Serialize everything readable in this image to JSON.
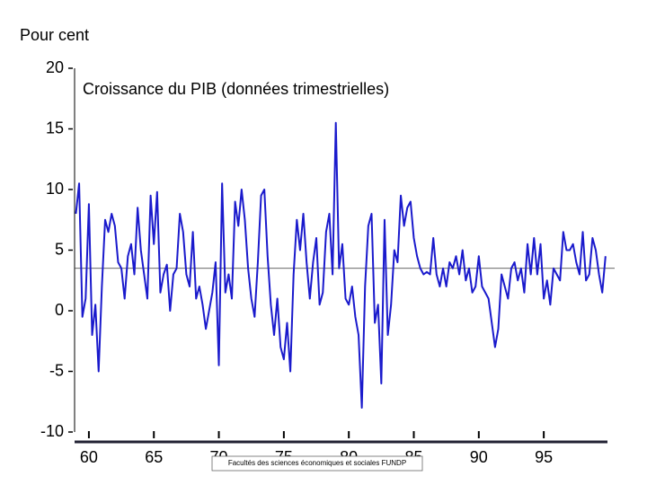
{
  "chart_data": {
    "type": "line",
    "title": "Croissance du PIB (données trimestrielles)",
    "y_label": "Pour cent",
    "footer": "Facultés des sciences économiques et sociales FUNDP",
    "x": [
      59,
      59.25,
      59.5,
      59.75,
      60,
      60.25,
      60.5,
      60.75,
      61,
      61.25,
      61.5,
      61.75,
      62,
      62.25,
      62.5,
      62.75,
      63,
      63.25,
      63.5,
      63.75,
      64,
      64.25,
      64.5,
      64.75,
      65,
      65.25,
      65.5,
      65.75,
      66,
      66.25,
      66.5,
      66.75,
      67,
      67.25,
      67.5,
      67.75,
      68,
      68.25,
      68.5,
      68.75,
      69,
      69.25,
      69.5,
      69.75,
      70,
      70.25,
      70.5,
      70.75,
      71,
      71.25,
      71.5,
      71.75,
      72,
      72.25,
      72.5,
      72.75,
      73,
      73.25,
      73.5,
      73.75,
      74,
      74.25,
      74.5,
      74.75,
      75,
      75.25,
      75.5,
      75.75,
      76,
      76.25,
      76.5,
      76.75,
      77,
      77.25,
      77.5,
      77.75,
      78,
      78.25,
      78.5,
      78.75,
      79,
      79.25,
      79.5,
      79.75,
      80,
      80.25,
      80.5,
      80.75,
      81,
      81.25,
      81.5,
      81.75,
      82,
      82.25,
      82.5,
      82.75,
      83,
      83.25,
      83.5,
      83.75,
      84,
      84.25,
      84.5,
      84.75,
      85,
      85.25,
      85.5,
      85.75,
      86,
      86.25,
      86.5,
      86.75,
      87,
      87.25,
      87.5,
      87.75,
      88,
      88.25,
      88.5,
      88.75,
      89,
      89.25,
      89.5,
      89.75,
      90,
      90.25,
      90.5,
      90.75,
      91,
      91.25,
      91.5,
      91.75,
      92,
      92.25,
      92.5,
      92.75,
      93,
      93.25,
      93.5,
      93.75,
      94,
      94.25,
      94.5,
      94.75,
      95,
      95.25,
      95.5,
      95.75,
      96,
      96.25,
      96.5,
      96.75,
      97,
      97.25,
      97.5,
      97.75,
      98,
      98.25,
      98.5,
      98.75,
      99,
      99.25,
      99.5,
      99.75
    ],
    "series": [
      {
        "name": "PIB",
        "color": "#1a1acc",
        "values": [
          8,
          10.5,
          -0.5,
          1,
          8.8,
          -2,
          0.5,
          -5,
          2,
          7.5,
          6.5,
          8,
          7,
          4,
          3.5,
          1,
          4.5,
          5.5,
          3,
          8.5,
          5,
          3,
          1,
          9.5,
          5.5,
          9.8,
          1.5,
          3,
          3.8,
          0,
          3,
          3.5,
          8,
          6.5,
          3,
          2,
          6.5,
          1,
          2,
          0.5,
          -1.5,
          0,
          1.5,
          4,
          -4.5,
          10.5,
          1.5,
          3,
          1,
          9,
          7,
          10,
          7.5,
          3.5,
          1,
          -0.5,
          4,
          9.5,
          10,
          4.5,
          0.5,
          -2,
          1,
          -3,
          -4,
          -1,
          -5,
          3,
          7.5,
          5,
          8,
          4,
          1,
          4,
          6,
          0.5,
          1.5,
          6.5,
          8,
          3,
          15.5,
          3.5,
          5.5,
          1,
          0.5,
          2,
          -0.5,
          -2,
          -8,
          2,
          7,
          8,
          -1,
          0.5,
          -6,
          7.5,
          -2,
          0.5,
          5,
          4,
          9.5,
          7,
          8.5,
          9,
          6,
          4.5,
          3.5,
          3,
          3.2,
          3,
          6,
          3,
          2,
          3.5,
          2,
          4,
          3.5,
          4.5,
          3,
          5,
          2.5,
          3.5,
          1.5,
          2,
          4.5,
          2,
          1.5,
          1,
          -1,
          -3,
          -1.5,
          3,
          2,
          1,
          3.5,
          4,
          2.5,
          3.5,
          1.5,
          5.5,
          3,
          6,
          3,
          5.5,
          1,
          2.5,
          0.5,
          3.5,
          3,
          2.5,
          6.5,
          5,
          5,
          5.5,
          4,
          3,
          6.5,
          2.5,
          3,
          6,
          5,
          3,
          1.5,
          4.5
        ]
      }
    ],
    "reference_line": 3.5,
    "xlim": [
      58.9,
      99.9
    ],
    "xticks": [
      60,
      65,
      70,
      75,
      80,
      85,
      90,
      95
    ],
    "ylim": [
      -10,
      20
    ],
    "yticks": [
      -10,
      -5,
      0,
      5,
      10,
      15,
      20
    ]
  }
}
